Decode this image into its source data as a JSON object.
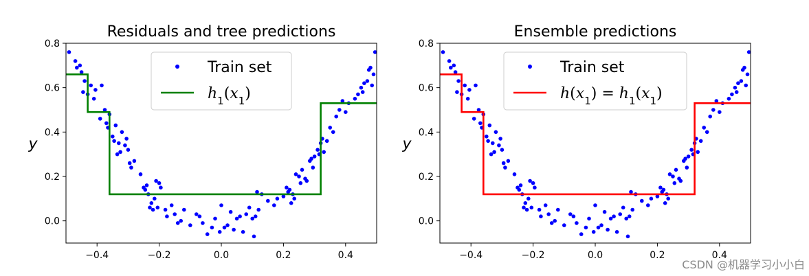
{
  "chart_data": [
    {
      "type": "scatter",
      "title": "Residuals and tree predictions",
      "xlabel": "",
      "ylabel": "y",
      "xlim": [
        -0.5,
        0.5
      ],
      "ylim": [
        -0.1,
        0.8
      ],
      "xticks": [
        -0.4,
        -0.2,
        0.0,
        0.2,
        0.4
      ],
      "xtick_labels": [
        "−0.4",
        "−0.2",
        "0.0",
        "0.2",
        "0.4"
      ],
      "yticks": [
        0.0,
        0.2,
        0.4,
        0.6,
        0.8
      ],
      "ytick_labels": [
        "0.0",
        "0.2",
        "0.4",
        "0.6",
        "0.8"
      ],
      "legend": {
        "placement": "top-center"
      },
      "series": [
        {
          "name": "Train set",
          "kind": "points",
          "color": "#0000ff",
          "points": [
            [
              -0.49,
              0.76
            ],
            [
              -0.47,
              0.72
            ],
            [
              -0.465,
              0.69
            ],
            [
              -0.455,
              0.7
            ],
            [
              -0.45,
              0.67
            ],
            [
              -0.445,
              0.58
            ],
            [
              -0.44,
              0.63
            ],
            [
              -0.43,
              0.57
            ],
            [
              -0.42,
              0.61
            ],
            [
              -0.41,
              0.55
            ],
            [
              -0.405,
              0.59
            ],
            [
              -0.39,
              0.46
            ],
            [
              -0.385,
              0.61
            ],
            [
              -0.375,
              0.5
            ],
            [
              -0.37,
              0.44
            ],
            [
              -0.365,
              0.42
            ],
            [
              -0.36,
              0.48
            ],
            [
              -0.35,
              0.38
            ],
            [
              -0.345,
              0.36
            ],
            [
              -0.34,
              0.43
            ],
            [
              -0.335,
              0.3
            ],
            [
              -0.33,
              0.35
            ],
            [
              -0.325,
              0.31
            ],
            [
              -0.32,
              0.4
            ],
            [
              -0.31,
              0.34
            ],
            [
              -0.305,
              0.37
            ],
            [
              -0.3,
              0.32
            ],
            [
              -0.295,
              0.26
            ],
            [
              -0.29,
              0.24
            ],
            [
              -0.28,
              0.27
            ],
            [
              -0.26,
              0.21
            ],
            [
              -0.25,
              0.15
            ],
            [
              -0.245,
              0.14
            ],
            [
              -0.24,
              0.16
            ],
            [
              -0.235,
              0.12
            ],
            [
              -0.23,
              0.06
            ],
            [
              -0.225,
              0.08
            ],
            [
              -0.22,
              0.05
            ],
            [
              -0.215,
              0.1
            ],
            [
              -0.21,
              0.18
            ],
            [
              -0.205,
              0.06
            ],
            [
              -0.2,
              0.17
            ],
            [
              -0.195,
              0.15
            ],
            [
              -0.18,
              0.05
            ],
            [
              -0.175,
              0.02
            ],
            [
              -0.16,
              0.07
            ],
            [
              -0.15,
              0.03
            ],
            [
              -0.14,
              -0.01
            ],
            [
              -0.13,
              0.0
            ],
            [
              -0.12,
              0.05
            ],
            [
              -0.1,
              -0.02
            ],
            [
              -0.08,
              0.03
            ],
            [
              -0.07,
              0.02
            ],
            [
              -0.06,
              -0.01
            ],
            [
              -0.045,
              -0.06
            ],
            [
              -0.03,
              -0.03
            ],
            [
              -0.02,
              0.01
            ],
            [
              -0.005,
              -0.05
            ],
            [
              0.0,
              0.07
            ],
            [
              0.01,
              -0.03
            ],
            [
              0.02,
              -0.02
            ],
            [
              0.03,
              0.04
            ],
            [
              0.04,
              -0.04
            ],
            [
              0.05,
              0.01
            ],
            [
              0.06,
              0.02
            ],
            [
              0.07,
              -0.05
            ],
            [
              0.08,
              0.03
            ],
            [
              0.09,
              0.06
            ],
            [
              0.1,
              0.01
            ],
            [
              0.105,
              -0.07
            ],
            [
              0.11,
              0.02
            ],
            [
              0.115,
              0.13
            ],
            [
              0.12,
              0.05
            ],
            [
              0.13,
              0.12
            ],
            [
              0.15,
              0.09
            ],
            [
              0.17,
              0.07
            ],
            [
              0.18,
              0.1
            ],
            [
              0.2,
              0.11
            ],
            [
              0.21,
              0.15
            ],
            [
              0.215,
              0.13
            ],
            [
              0.22,
              0.14
            ],
            [
              0.225,
              0.08
            ],
            [
              0.23,
              0.12
            ],
            [
              0.235,
              0.1
            ],
            [
              0.24,
              0.21
            ],
            [
              0.25,
              0.2
            ],
            [
              0.255,
              0.17
            ],
            [
              0.26,
              0.23
            ],
            [
              0.27,
              0.19
            ],
            [
              0.275,
              0.18
            ],
            [
              0.285,
              0.27
            ],
            [
              0.29,
              0.28
            ],
            [
              0.295,
              0.24
            ],
            [
              0.3,
              0.29
            ],
            [
              0.31,
              0.32
            ],
            [
              0.315,
              0.3
            ],
            [
              0.32,
              0.35
            ],
            [
              0.325,
              0.37
            ],
            [
              0.33,
              0.31
            ],
            [
              0.34,
              0.36
            ],
            [
              0.35,
              0.42
            ],
            [
              0.36,
              0.4
            ],
            [
              0.37,
              0.47
            ],
            [
              0.38,
              0.5
            ],
            [
              0.39,
              0.54
            ],
            [
              0.4,
              0.49
            ],
            [
              0.41,
              0.53
            ],
            [
              0.43,
              0.55
            ],
            [
              0.44,
              0.57
            ],
            [
              0.45,
              0.6
            ],
            [
              0.455,
              0.58
            ],
            [
              0.46,
              0.62
            ],
            [
              0.47,
              0.63
            ],
            [
              0.475,
              0.68
            ],
            [
              0.48,
              0.69
            ],
            [
              0.485,
              0.61
            ],
            [
              0.49,
              0.66
            ],
            [
              0.495,
              0.76
            ]
          ]
        },
        {
          "name": "h_1(x_1)",
          "kind": "step",
          "color": "#008000",
          "points": [
            [
              -0.5,
              0.66
            ],
            [
              -0.43,
              0.66
            ],
            [
              -0.43,
              0.49
            ],
            [
              -0.36,
              0.49
            ],
            [
              -0.36,
              0.12
            ],
            [
              0.32,
              0.12
            ],
            [
              0.32,
              0.53
            ],
            [
              0.5,
              0.53
            ]
          ]
        }
      ]
    },
    {
      "type": "scatter",
      "title": "Ensemble predictions",
      "xlabel": "",
      "ylabel": "y",
      "xlim": [
        -0.5,
        0.5
      ],
      "ylim": [
        -0.1,
        0.8
      ],
      "xticks": [
        -0.4,
        -0.2,
        0.0,
        0.2,
        0.4
      ],
      "xtick_labels": [
        "−0.4",
        "−0.2",
        "0.0",
        "0.2",
        "0.4"
      ],
      "yticks": [
        0.0,
        0.2,
        0.4,
        0.6,
        0.8
      ],
      "ytick_labels": [
        "0.0",
        "0.2",
        "0.4",
        "0.6",
        "0.8"
      ],
      "legend": {
        "placement": "top-center"
      },
      "series": [
        {
          "name": "Train set",
          "kind": "points",
          "color": "#0000ff",
          "points": [
            [
              -0.49,
              0.76
            ],
            [
              -0.47,
              0.72
            ],
            [
              -0.465,
              0.69
            ],
            [
              -0.455,
              0.7
            ],
            [
              -0.45,
              0.67
            ],
            [
              -0.445,
              0.58
            ],
            [
              -0.44,
              0.63
            ],
            [
              -0.43,
              0.57
            ],
            [
              -0.42,
              0.61
            ],
            [
              -0.41,
              0.55
            ],
            [
              -0.405,
              0.59
            ],
            [
              -0.39,
              0.46
            ],
            [
              -0.385,
              0.61
            ],
            [
              -0.375,
              0.5
            ],
            [
              -0.37,
              0.44
            ],
            [
              -0.365,
              0.42
            ],
            [
              -0.36,
              0.48
            ],
            [
              -0.35,
              0.38
            ],
            [
              -0.345,
              0.36
            ],
            [
              -0.34,
              0.43
            ],
            [
              -0.335,
              0.3
            ],
            [
              -0.33,
              0.35
            ],
            [
              -0.325,
              0.31
            ],
            [
              -0.32,
              0.4
            ],
            [
              -0.31,
              0.34
            ],
            [
              -0.305,
              0.37
            ],
            [
              -0.3,
              0.32
            ],
            [
              -0.295,
              0.26
            ],
            [
              -0.29,
              0.24
            ],
            [
              -0.28,
              0.27
            ],
            [
              -0.26,
              0.21
            ],
            [
              -0.25,
              0.15
            ],
            [
              -0.245,
              0.14
            ],
            [
              -0.24,
              0.16
            ],
            [
              -0.235,
              0.12
            ],
            [
              -0.23,
              0.06
            ],
            [
              -0.225,
              0.08
            ],
            [
              -0.22,
              0.05
            ],
            [
              -0.215,
              0.1
            ],
            [
              -0.21,
              0.18
            ],
            [
              -0.205,
              0.06
            ],
            [
              -0.2,
              0.17
            ],
            [
              -0.195,
              0.15
            ],
            [
              -0.18,
              0.05
            ],
            [
              -0.175,
              0.02
            ],
            [
              -0.16,
              0.07
            ],
            [
              -0.15,
              0.03
            ],
            [
              -0.14,
              -0.01
            ],
            [
              -0.13,
              0.0
            ],
            [
              -0.12,
              0.05
            ],
            [
              -0.1,
              -0.02
            ],
            [
              -0.08,
              0.03
            ],
            [
              -0.07,
              0.02
            ],
            [
              -0.06,
              -0.01
            ],
            [
              -0.045,
              -0.06
            ],
            [
              -0.03,
              -0.03
            ],
            [
              -0.02,
              0.01
            ],
            [
              -0.005,
              -0.05
            ],
            [
              0.0,
              0.07
            ],
            [
              0.01,
              -0.03
            ],
            [
              0.02,
              -0.02
            ],
            [
              0.03,
              0.04
            ],
            [
              0.04,
              -0.04
            ],
            [
              0.05,
              0.01
            ],
            [
              0.06,
              0.02
            ],
            [
              0.07,
              -0.05
            ],
            [
              0.08,
              0.03
            ],
            [
              0.09,
              0.06
            ],
            [
              0.1,
              0.01
            ],
            [
              0.105,
              -0.07
            ],
            [
              0.11,
              0.02
            ],
            [
              0.115,
              0.13
            ],
            [
              0.12,
              0.05
            ],
            [
              0.13,
              0.12
            ],
            [
              0.15,
              0.09
            ],
            [
              0.17,
              0.07
            ],
            [
              0.18,
              0.1
            ],
            [
              0.2,
              0.11
            ],
            [
              0.21,
              0.15
            ],
            [
              0.215,
              0.13
            ],
            [
              0.22,
              0.14
            ],
            [
              0.225,
              0.08
            ],
            [
              0.23,
              0.12
            ],
            [
              0.235,
              0.1
            ],
            [
              0.24,
              0.21
            ],
            [
              0.25,
              0.2
            ],
            [
              0.255,
              0.17
            ],
            [
              0.26,
              0.23
            ],
            [
              0.27,
              0.19
            ],
            [
              0.275,
              0.18
            ],
            [
              0.285,
              0.27
            ],
            [
              0.29,
              0.28
            ],
            [
              0.295,
              0.24
            ],
            [
              0.3,
              0.29
            ],
            [
              0.31,
              0.32
            ],
            [
              0.315,
              0.3
            ],
            [
              0.32,
              0.35
            ],
            [
              0.325,
              0.37
            ],
            [
              0.33,
              0.31
            ],
            [
              0.34,
              0.36
            ],
            [
              0.35,
              0.42
            ],
            [
              0.36,
              0.4
            ],
            [
              0.37,
              0.47
            ],
            [
              0.38,
              0.5
            ],
            [
              0.39,
              0.54
            ],
            [
              0.4,
              0.49
            ],
            [
              0.41,
              0.53
            ],
            [
              0.43,
              0.55
            ],
            [
              0.44,
              0.57
            ],
            [
              0.45,
              0.6
            ],
            [
              0.455,
              0.58
            ],
            [
              0.46,
              0.62
            ],
            [
              0.47,
              0.63
            ],
            [
              0.475,
              0.68
            ],
            [
              0.48,
              0.69
            ],
            [
              0.485,
              0.61
            ],
            [
              0.49,
              0.66
            ],
            [
              0.495,
              0.76
            ]
          ]
        },
        {
          "name": "h(x_1) = h_1(x_1)",
          "kind": "step",
          "color": "#ff0000",
          "points": [
            [
              -0.5,
              0.66
            ],
            [
              -0.43,
              0.66
            ],
            [
              -0.43,
              0.49
            ],
            [
              -0.36,
              0.49
            ],
            [
              -0.36,
              0.12
            ],
            [
              0.32,
              0.12
            ],
            [
              0.32,
              0.53
            ],
            [
              0.5,
              0.53
            ]
          ]
        }
      ]
    }
  ],
  "watermark": "CSDN @机器学习小小白"
}
